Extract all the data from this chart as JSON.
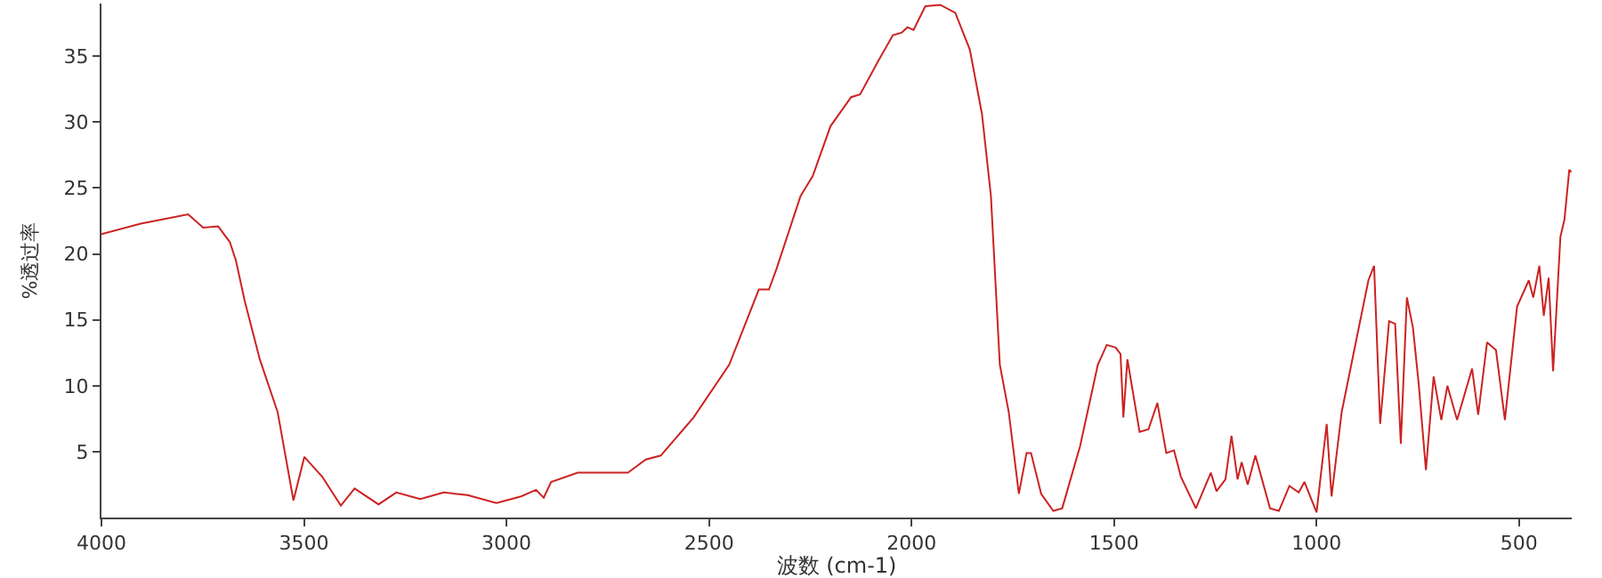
{
  "chart_data": {
    "type": "line",
    "xlabel": "波数 (cm-1)",
    "ylabel": "%透过率",
    "xlim": [
      4000,
      370
    ],
    "ylim": [
      0,
      39
    ],
    "xticks": [
      4000,
      3500,
      3000,
      2500,
      2000,
      1500,
      1000,
      500
    ],
    "yticks": [
      5,
      10,
      15,
      20,
      25,
      30,
      35
    ],
    "marker": "none",
    "line_style": "solid",
    "x": [
      4000,
      3903,
      3786,
      3749,
      3712,
      3683,
      3668,
      3646,
      3609,
      3565,
      3526,
      3499,
      3455,
      3409,
      3375,
      3316,
      3272,
      3213,
      3155,
      3096,
      3025,
      2964,
      2927,
      2908,
      2890,
      2824,
      2758,
      2700,
      2656,
      2619,
      2538,
      2450,
      2377,
      2352,
      2333,
      2274,
      2244,
      2200,
      2149,
      2127,
      2083,
      2046,
      2024,
      2010,
      1995,
      1966,
      1929,
      1892,
      1856,
      1826,
      1804,
      1782,
      1760,
      1735,
      1716,
      1705,
      1680,
      1650,
      1628,
      1584,
      1540,
      1518,
      1496,
      1484,
      1477,
      1467,
      1437,
      1415,
      1393,
      1371,
      1352,
      1335,
      1298,
      1261,
      1247,
      1225,
      1210,
      1195,
      1185,
      1170,
      1151,
      1115,
      1093,
      1067,
      1044,
      1030,
      1000,
      975,
      963,
      938,
      909,
      872,
      858,
      843,
      821,
      806,
      792,
      777,
      762,
      748,
      730,
      711,
      692,
      677,
      653,
      616,
      601,
      579,
      557,
      535,
      505,
      476,
      465,
      450,
      439,
      427,
      416,
      398,
      388,
      376,
      371
    ],
    "series": [
      {
        "color": "#cc2222",
        "values": [
          21.5,
          22.3,
          23.0,
          22.0,
          22.1,
          20.9,
          19.5,
          16.4,
          12.0,
          8.0,
          1.3,
          4.6,
          3.1,
          0.9,
          2.2,
          1.0,
          1.9,
          1.4,
          1.9,
          1.7,
          1.1,
          1.6,
          2.1,
          1.5,
          2.7,
          3.4,
          3.4,
          3.4,
          4.4,
          4.7,
          7.6,
          11.6,
          17.3,
          17.3,
          18.9,
          24.4,
          25.9,
          29.7,
          31.9,
          32.1,
          34.6,
          36.6,
          36.8,
          37.2,
          37.0,
          38.8,
          38.9,
          38.3,
          35.5,
          30.6,
          24.4,
          11.6,
          8.0,
          1.8,
          4.9,
          4.9,
          1.8,
          0.5,
          0.7,
          5.4,
          11.6,
          13.1,
          12.9,
          12.4,
          7.6,
          12.0,
          6.5,
          6.7,
          8.7,
          4.9,
          5.1,
          3.1,
          0.7,
          3.4,
          2.0,
          2.9,
          6.2,
          2.9,
          4.2,
          2.5,
          4.7,
          0.7,
          0.5,
          2.4,
          1.9,
          2.7,
          0.4,
          7.1,
          1.6,
          8.0,
          12.4,
          18.0,
          19.1,
          7.1,
          14.9,
          14.7,
          5.6,
          16.7,
          14.4,
          10.2,
          3.6,
          10.7,
          7.4,
          10.0,
          7.4,
          11.3,
          7.8,
          13.3,
          12.7,
          7.4,
          16.0,
          18.0,
          16.7,
          19.1,
          15.3,
          18.2,
          11.1,
          21.3,
          22.6,
          26.4,
          26.2
        ]
      }
    ]
  }
}
